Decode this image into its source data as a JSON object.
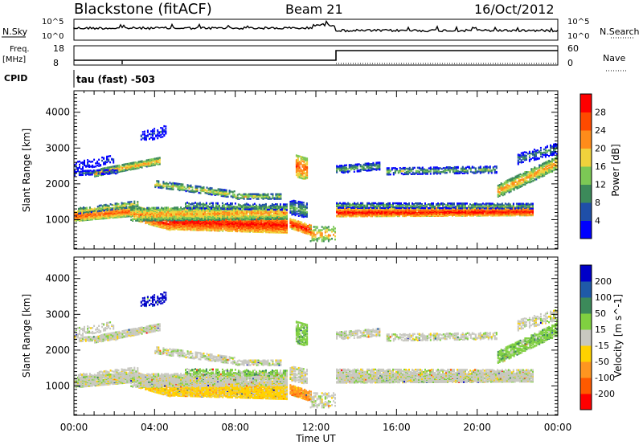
{
  "header": {
    "site": "Blackstone (fitACF)",
    "beam": "Beam 21",
    "date": "16/Oct/2012"
  },
  "top_panels": {
    "nsky_label": "N.Sky",
    "nsky_ticks": [
      "10^5",
      "10^0"
    ],
    "nsearch_label": "N.Search",
    "nsearch_ticks": [
      "10^5",
      "10^0"
    ],
    "freq_label": "Freq.",
    "freq_unit": "[MHz]",
    "freq_ticks": [
      "18",
      "8"
    ],
    "nave_label": "Nave",
    "nave_ticks": [
      "60",
      "0"
    ],
    "cpid_label": "CPID",
    "cpid_value": "tau (fast) -503"
  },
  "colors": {
    "power_scale": [
      "#0000ff",
      "#1f4fa8",
      "#3c8a5a",
      "#7cc855",
      "#f0d23c",
      "#ff8c1a",
      "#ff4a00",
      "#ff0000"
    ],
    "velocity_scale": [
      "#0000c8",
      "#1f5aa8",
      "#3c8a5a",
      "#80d040",
      "#c8c8c0",
      "#ffd200",
      "#ff9620",
      "#ff5a00",
      "#ff0000"
    ]
  },
  "chart_data": [
    {
      "type": "heatmap",
      "title": "",
      "xlabel": "Time UT",
      "ylabel": "Slant Range [km]",
      "x_range_hours": [
        0,
        24
      ],
      "x_ticks": [
        "00:00",
        "04:00",
        "08:00",
        "12:00",
        "16:00",
        "20:00",
        "00:00"
      ],
      "y_range_km": [
        180,
        4600
      ],
      "y_ticks": [
        "1000",
        "2000",
        "3000",
        "4000"
      ],
      "colorbar_label": "Power [dB]",
      "colorbar_ticks": [
        "4",
        "8",
        "12",
        "16",
        "20",
        "24",
        "28"
      ],
      "colorbar_range": [
        0,
        32
      ]
    },
    {
      "type": "heatmap",
      "title": "",
      "xlabel": "Time UT",
      "ylabel": "Slant Range [km]",
      "x_range_hours": [
        0,
        24
      ],
      "x_ticks": [
        "00:00",
        "04:00",
        "08:00",
        "12:00",
        "16:00",
        "20:00",
        "00:00"
      ],
      "y_range_km": [
        180,
        4600
      ],
      "y_ticks": [
        "1000",
        "2000",
        "3000",
        "4000"
      ],
      "colorbar_label": "Velocity [m s^-1]",
      "colorbar_ticks": [
        "200",
        "100",
        "50",
        "15",
        "-15",
        "-50",
        "-100",
        "-200"
      ]
    }
  ],
  "time_label": "Time UT"
}
